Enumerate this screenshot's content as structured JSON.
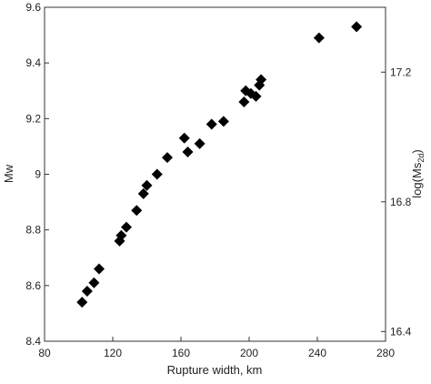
{
  "chart_data": {
    "type": "scatter",
    "xlabel": "Rupture width, km",
    "ylabel": "Mw",
    "y2label_base": "log(Ms",
    "y2label_sub": "2d",
    "y2label_end": ")",
    "xlim": [
      80,
      280
    ],
    "ylim": [
      8.4,
      9.6
    ],
    "y2lim": [
      16.37,
      17.4
    ],
    "x_ticks": [
      "80",
      "120",
      "160",
      "200",
      "240",
      "280"
    ],
    "y_ticks": [
      "8.4",
      "8.6",
      "8.8",
      "9",
      "9.2",
      "9.4",
      "9.6"
    ],
    "y2_ticks": [
      "16.4",
      "16.8",
      "17.2"
    ],
    "x_tick_values": [
      80,
      120,
      160,
      200,
      240,
      280
    ],
    "y_tick_values": [
      8.4,
      8.6,
      8.8,
      9.0,
      9.2,
      9.4,
      9.6
    ],
    "y2_tick_values": [
      16.4,
      16.8,
      17.2
    ],
    "marker": "diamond",
    "marker_color": "#000000",
    "grid": false,
    "series": [
      {
        "points": [
          [
            102,
            8.54
          ],
          [
            105,
            8.58
          ],
          [
            109,
            8.61
          ],
          [
            112,
            8.66
          ],
          [
            124,
            8.76
          ],
          [
            125,
            8.78
          ],
          [
            128,
            8.81
          ],
          [
            134,
            8.87
          ],
          [
            138,
            8.93
          ],
          [
            140,
            8.96
          ],
          [
            146,
            9.0
          ],
          [
            152,
            9.06
          ],
          [
            162,
            9.13
          ],
          [
            164,
            9.08
          ],
          [
            171,
            9.11
          ],
          [
            178,
            9.18
          ],
          [
            185,
            9.19
          ],
          [
            197,
            9.26
          ],
          [
            198,
            9.3
          ],
          [
            201,
            9.29
          ],
          [
            204,
            9.28
          ],
          [
            206,
            9.32
          ],
          [
            207,
            9.34
          ],
          [
            241,
            9.49
          ],
          [
            263,
            9.53
          ]
        ]
      }
    ]
  }
}
